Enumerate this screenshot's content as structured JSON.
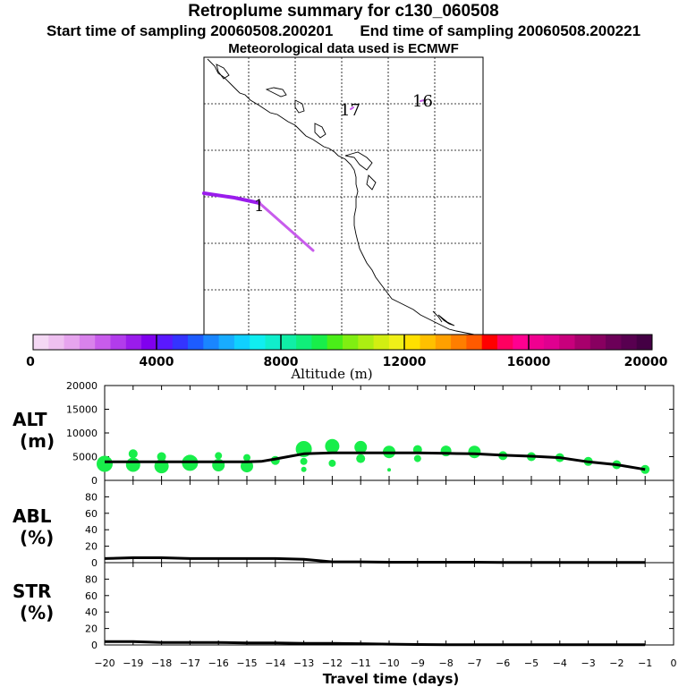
{
  "header": {
    "title": "Retroplume summary for c130_060508",
    "start_label": "Start time of sampling 20060508.200201",
    "end_label": "End time of sampling 20060508.200221",
    "met_label": "Meteorological data used is ECMWF"
  },
  "map": {
    "trajectory_labels": [
      "1",
      "17",
      "16"
    ],
    "trajectory_color": "#b044ff"
  },
  "colorbar": {
    "title": "Altitude (m)",
    "tick_labels": [
      "0",
      "4000",
      "8000",
      "12000",
      "16000",
      "20000"
    ],
    "colors": [
      "#f4d8f4",
      "#eec0f0",
      "#e6a4ee",
      "#d982ec",
      "#c85cec",
      "#b23cec",
      "#9a1cec",
      "#8000ee",
      "#5a18ff",
      "#3434ff",
      "#1d5cff",
      "#1a86ff",
      "#18acff",
      "#10d0ff",
      "#10eef0",
      "#10eecc",
      "#10eea6",
      "#10ee7a",
      "#18ee4a",
      "#4aee18",
      "#80ee12",
      "#acee12",
      "#d2ee12",
      "#f0f018",
      "#ffe000",
      "#ffc000",
      "#ffa000",
      "#ff7e00",
      "#ff5a00",
      "#ff0000",
      "#ff0060",
      "#ff0090",
      "#f00090",
      "#e00090",
      "#c8007c",
      "#a8006c",
      "#880060",
      "#6c0058",
      "#580050",
      "#440044"
    ]
  },
  "chart_data": {
    "type": "line",
    "xlabel": "Travel time (days)",
    "x_tick_labels": [
      "−20",
      "−19",
      "−18",
      "−17",
      "−16",
      "−15",
      "−14",
      "−13",
      "−12",
      "−11",
      "−10",
      "−9",
      "−8",
      "−7",
      "−6",
      "−5",
      "−4",
      "−3",
      "−2",
      "−1",
      "0"
    ],
    "xlim": [
      -20,
      0
    ],
    "panels": [
      {
        "name": "alt",
        "label_line1": "ALT",
        "label_line2": "(m)",
        "ylim": [
          0,
          20000
        ],
        "y_tick_labels": [
          "0",
          "5000",
          "10000",
          "15000",
          "20000"
        ],
        "line": {
          "x": [
            -20,
            -19,
            -18,
            -17,
            -16,
            -15,
            -14.5,
            -14,
            -13,
            -12,
            -11,
            -10,
            -9,
            -8,
            -7,
            -6,
            -5,
            -4,
            -3,
            -2,
            -1
          ],
          "y": [
            3900,
            3900,
            3900,
            3900,
            3900,
            3900,
            4000,
            4500,
            5600,
            5800,
            5800,
            5800,
            5800,
            5700,
            5600,
            5300,
            5100,
            4800,
            3900,
            3300,
            2300
          ]
        },
        "clusters": [
          {
            "x": -20.0,
            "y": 3500,
            "s": 9
          },
          {
            "x": -19.0,
            "y": 3300,
            "s": 8
          },
          {
            "x": -19.0,
            "y": 5600,
            "s": 5
          },
          {
            "x": -18.0,
            "y": 3000,
            "s": 8
          },
          {
            "x": -18.0,
            "y": 5000,
            "s": 5
          },
          {
            "x": -17.0,
            "y": 3700,
            "s": 9
          },
          {
            "x": -16.0,
            "y": 3200,
            "s": 7
          },
          {
            "x": -16.0,
            "y": 5200,
            "s": 4
          },
          {
            "x": -15.0,
            "y": 3000,
            "s": 7
          },
          {
            "x": -15.0,
            "y": 4800,
            "s": 4
          },
          {
            "x": -14.0,
            "y": 4200,
            "s": 5
          },
          {
            "x": -13.0,
            "y": 6600,
            "s": 9
          },
          {
            "x": -13.0,
            "y": 4000,
            "s": 4
          },
          {
            "x": -13.0,
            "y": 2300,
            "s": 3
          },
          {
            "x": -12.0,
            "y": 7200,
            "s": 8
          },
          {
            "x": -12.0,
            "y": 3600,
            "s": 4
          },
          {
            "x": -11.0,
            "y": 7000,
            "s": 7
          },
          {
            "x": -11.0,
            "y": 4600,
            "s": 5
          },
          {
            "x": -10.0,
            "y": 6000,
            "s": 7
          },
          {
            "x": -10.0,
            "y": 2200,
            "s": 2
          },
          {
            "x": -9.0,
            "y": 6500,
            "s": 5
          },
          {
            "x": -9.0,
            "y": 4600,
            "s": 4
          },
          {
            "x": -8.0,
            "y": 6200,
            "s": 6
          },
          {
            "x": -7.0,
            "y": 6000,
            "s": 7
          },
          {
            "x": -6.0,
            "y": 5200,
            "s": 5
          },
          {
            "x": -5.0,
            "y": 5000,
            "s": 5
          },
          {
            "x": -4.0,
            "y": 4800,
            "s": 5
          },
          {
            "x": -3.0,
            "y": 4000,
            "s": 5
          },
          {
            "x": -2.0,
            "y": 3300,
            "s": 5
          },
          {
            "x": -1.0,
            "y": 2300,
            "s": 5
          }
        ]
      },
      {
        "name": "abl",
        "label_line1": "ABL",
        "label_line2": "(%)",
        "ylim": [
          0,
          100
        ],
        "y_tick_labels": [
          "0",
          "20",
          "40",
          "60",
          "80"
        ],
        "line": {
          "x": [
            -20,
            -19,
            -18,
            -17,
            -16,
            -15,
            -14,
            -13,
            -12,
            -11,
            -10,
            -9,
            -8,
            -7,
            -6,
            -5,
            -4,
            -3,
            -2,
            -1
          ],
          "y": [
            5,
            6,
            6,
            5,
            5,
            5,
            5,
            4,
            1,
            1,
            0.5,
            0.5,
            0.5,
            0.5,
            0.3,
            0.3,
            0.3,
            0.3,
            0.2,
            0.2
          ]
        }
      },
      {
        "name": "str",
        "label_line1": "STR",
        "label_line2": "(%)",
        "ylim": [
          0,
          100
        ],
        "y_tick_labels": [
          "0",
          "20",
          "40",
          "60",
          "80"
        ],
        "line": {
          "x": [
            -20,
            -19,
            -18,
            -17,
            -16,
            -15,
            -14,
            -13,
            -12,
            -11,
            -10,
            -9,
            -8,
            -7,
            -6,
            -5,
            -4,
            -3,
            -2,
            -1
          ],
          "y": [
            4,
            4,
            3,
            3,
            3,
            2.5,
            2.5,
            2,
            2,
            1.5,
            1,
            0.5,
            0.3,
            0.2,
            0.2,
            0.2,
            0.2,
            0.2,
            0.2,
            0.2
          ]
        }
      }
    ]
  }
}
